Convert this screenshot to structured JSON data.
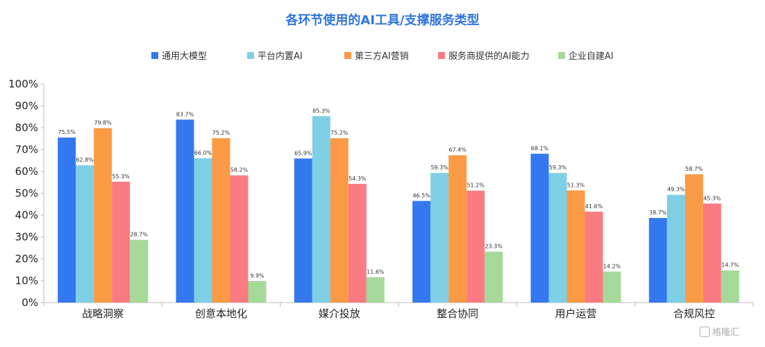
{
  "chart_data": {
    "type": "bar",
    "title": "各环节使用的AI工具/支撑服务类型",
    "categories": [
      "战略洞察",
      "创意本地化",
      "媒介投放",
      "整合协同",
      "用户运营",
      "合规风控"
    ],
    "series": [
      {
        "name": "通用大模型",
        "color": "#3478f0",
        "values": [
          75.5,
          83.7,
          65.9,
          46.5,
          68.1,
          38.7
        ]
      },
      {
        "name": "平台内置AI",
        "color": "#7ecfe5",
        "values": [
          62.8,
          66.0,
          85.3,
          59.3,
          59.3,
          49.3
        ]
      },
      {
        "name": "第三方AI营销",
        "color": "#fb9a45",
        "values": [
          79.8,
          75.2,
          75.2,
          67.4,
          51.3,
          58.7
        ]
      },
      {
        "name": "服务商提供的AI能力",
        "color": "#fb7b82",
        "values": [
          55.3,
          58.2,
          54.3,
          51.2,
          41.6,
          45.3
        ]
      },
      {
        "name": "企业自建AI",
        "color": "#a5d99a",
        "values": [
          28.7,
          9.9,
          11.6,
          23.3,
          14.2,
          14.7
        ]
      }
    ],
    "ylim": [
      0,
      100
    ],
    "yticks": [
      "0%",
      "10%",
      "20%",
      "30%",
      "40%",
      "50%",
      "60%",
      "70%",
      "80%",
      "90%",
      "100%"
    ],
    "legend_position": "top",
    "grid": false
  },
  "watermark": "格隆汇"
}
